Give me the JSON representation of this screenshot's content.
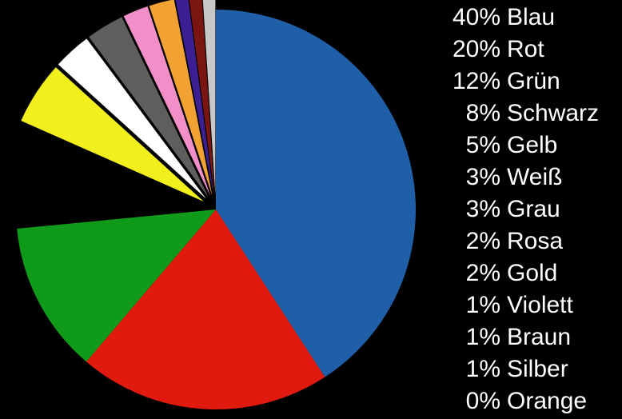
{
  "chart_data": {
    "type": "pie",
    "start_angle_deg": 0,
    "direction": "clockwise",
    "background": "#000000",
    "legend_position": "right",
    "slices": [
      {
        "label": "Blau",
        "value": 40,
        "display": "40%",
        "color": "#1f5fa8"
      },
      {
        "label": "Rot",
        "value": 20,
        "display": "20%",
        "color": "#e01a0e"
      },
      {
        "label": "Grün",
        "value": 12,
        "display": "12%",
        "color": "#0f9a1a"
      },
      {
        "label": "Schwarz",
        "value": 8,
        "display": "8%",
        "color": "#000000",
        "exploded": true
      },
      {
        "label": "Gelb",
        "value": 5,
        "display": "5%",
        "color": "#f2f01c",
        "exploded": true
      },
      {
        "label": "Weiß",
        "value": 3,
        "display": "3%",
        "color": "#ffffff",
        "exploded": true
      },
      {
        "label": "Grau",
        "value": 3,
        "display": "3%",
        "color": "#5e5e5e",
        "exploded": true
      },
      {
        "label": "Rosa",
        "value": 2,
        "display": "2%",
        "color": "#f28fc9",
        "exploded": true
      },
      {
        "label": "Gold",
        "value": 2,
        "display": "2%",
        "color": "#f2a233",
        "exploded": true
      },
      {
        "label": "Violett",
        "value": 1,
        "display": "1%",
        "color": "#3b1f93",
        "exploded": true
      },
      {
        "label": "Braun",
        "value": 1,
        "display": "1%",
        "color": "#7a1512",
        "exploded": true
      },
      {
        "label": "Silber",
        "value": 1,
        "display": "1%",
        "color": "#c8c8c8",
        "exploded": true
      },
      {
        "label": "Orange",
        "value": 0,
        "display": "0%",
        "color": "#f27a12",
        "exploded": true
      }
    ]
  }
}
